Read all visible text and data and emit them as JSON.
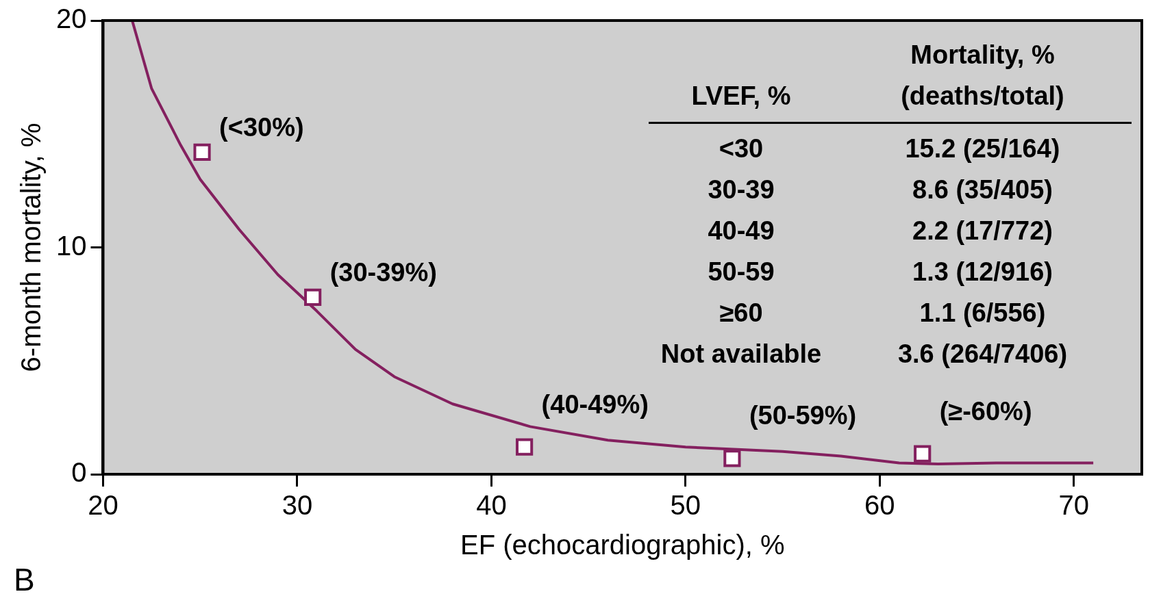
{
  "chart_data": {
    "type": "scatter",
    "xlabel": "EF (echocardiographic), %",
    "ylabel": "6-month mortality, %",
    "xlim": [
      20,
      73.5
    ],
    "xticks": [
      20,
      30,
      40,
      50,
      60,
      70
    ],
    "ylim": [
      0,
      20
    ],
    "yticks": [
      0,
      10,
      20
    ],
    "grid": false,
    "legend": false,
    "marker": "square",
    "series": [
      {
        "type": "line",
        "color": "#84205f",
        "marker": "none",
        "line_style": "solid",
        "x": [
          21.5,
          22.5,
          24,
          25,
          27,
          29,
          31,
          33,
          35,
          38,
          42,
          46,
          50,
          55,
          58,
          61,
          63,
          66,
          71
        ],
        "values": [
          20,
          17,
          14.5,
          13,
          10.8,
          8.8,
          7.2,
          5.5,
          4.3,
          3.1,
          2.1,
          1.5,
          1.2,
          1.0,
          0.8,
          0.5,
          0.45,
          0.5,
          0.5
        ]
      },
      {
        "type": "scatter",
        "color": "#84205f",
        "x": [
          25.1,
          30.8,
          41.7,
          52.4,
          62.2
        ],
        "values": [
          14.2,
          7.8,
          1.2,
          0.7,
          0.9
        ]
      }
    ],
    "annotations": [
      {
        "text": "(<30%)",
        "x": 25.1,
        "y": 14.2
      },
      {
        "text": "(30-39%)",
        "x": 30.8,
        "y": 7.8
      },
      {
        "text": "(40-49%)",
        "x": 41.7,
        "y": 1.2
      },
      {
        "text": "(50-59%)",
        "x": 52.4,
        "y": 0.7
      },
      {
        "text": "(≥-60%)",
        "x": 62.2,
        "y": 0.9
      },
      "B",
      "LVEF, %",
      "Mortality, % (deaths/total)",
      "<30",
      "15.2 (25/164)",
      "30-39",
      "8.6 (35/405)",
      "40-49",
      "2.2 (17/772)",
      "50-59",
      "1.3 (12/916)",
      "≥60",
      "1.1 (6/556)",
      "Not available",
      "3.6 (264/7406)"
    ]
  }
}
